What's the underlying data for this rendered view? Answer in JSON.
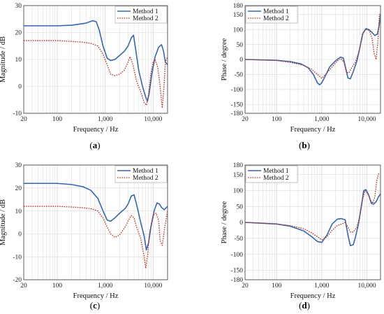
{
  "figure": {
    "colors": {
      "method1": "#3567b0",
      "method2": "#b5311f",
      "grid": "#d9d9d9",
      "frame": "#333333"
    }
  },
  "chart_data": [
    {
      "panel": "a",
      "panel_label": "(a)",
      "type": "line",
      "xscale": "log",
      "xlim": [
        20,
        20000
      ],
      "ylim": [
        -10,
        30
      ],
      "xticks": [
        20,
        100,
        1000,
        10000
      ],
      "xtick_labels": [
        "20",
        "100",
        "1,000",
        "10,000"
      ],
      "yticks": [
        -10,
        0,
        10,
        20,
        30
      ],
      "xlabel": "Frequency / Hz",
      "ylabel": "Magnitude / dB",
      "legend": "top-right",
      "series": [
        {
          "name": "Method 1",
          "style": "solid",
          "x": [
            20,
            100,
            200,
            400,
            550,
            650,
            750,
            900,
            1100,
            1300,
            1600,
            2000,
            2500,
            3000,
            3500,
            3900,
            4300,
            5000,
            6000,
            7000,
            7600,
            8200,
            9500,
            11000,
            13000,
            15000,
            16500,
            18000,
            20000
          ],
          "y": [
            22.5,
            22.5,
            22.7,
            23.5,
            24.4,
            24.0,
            21.0,
            15.0,
            10.5,
            9.6,
            10.0,
            11.5,
            13.0,
            15.0,
            18.0,
            19.0,
            14.0,
            6.0,
            0.0,
            -4.0,
            -5.5,
            -3.0,
            5.0,
            11.0,
            14.5,
            15.5,
            13.0,
            9.0,
            8.0
          ]
        },
        {
          "name": "Method 2",
          "style": "dotted",
          "x": [
            20,
            100,
            300,
            500,
            700,
            900,
            1100,
            1300,
            1600,
            2000,
            2500,
            3000,
            3300,
            3800,
            4500,
            5500,
            6500,
            7300,
            8000,
            9000,
            10000,
            11000,
            12500,
            14000,
            15500,
            17000,
            18000,
            20000
          ],
          "y": [
            17.0,
            17.0,
            16.5,
            16.0,
            15.0,
            12.0,
            8.0,
            4.5,
            4.0,
            4.5,
            6.0,
            9.0,
            11.0,
            8.0,
            2.0,
            -2.0,
            -6.0,
            -7.0,
            -3.0,
            5.0,
            9.0,
            10.0,
            7.0,
            0.0,
            -8.0,
            1.0,
            9.0,
            11.0
          ]
        }
      ]
    },
    {
      "panel": "b",
      "panel_label": "(b)",
      "type": "line",
      "xscale": "log",
      "xlim": [
        20,
        20000
      ],
      "ylim": [
        -180,
        180
      ],
      "xticks": [
        20,
        100,
        1000,
        10000
      ],
      "xtick_labels": [
        "20",
        "100",
        "1,000",
        "10,000"
      ],
      "yticks": [
        -180,
        -150,
        -100,
        -50,
        0,
        50,
        100,
        150,
        180
      ],
      "xlabel": "Frequency / Hz",
      "ylabel": "Phase / degree",
      "legend": "top-left",
      "series": [
        {
          "name": "Method 1",
          "style": "solid",
          "x": [
            20,
            100,
            200,
            350,
            500,
            650,
            800,
            900,
            1000,
            1200,
            1500,
            2000,
            2600,
            3000,
            3400,
            3800,
            4300,
            5000,
            6000,
            7000,
            8000,
            9500,
            11000,
            13000,
            15000,
            17000,
            18500,
            20000
          ],
          "y": [
            0,
            -3,
            -7,
            -15,
            -28,
            -50,
            -78,
            -85,
            -78,
            -55,
            -25,
            -5,
            8,
            5,
            -30,
            -62,
            -65,
            -40,
            -5,
            40,
            85,
            103,
            100,
            90,
            80,
            85,
            110,
            150
          ]
        },
        {
          "name": "Method 2",
          "style": "dotted",
          "x": [
            20,
            100,
            200,
            300,
            400,
            600,
            800,
            1000,
            1300,
            1700,
            2200,
            2700,
            3100,
            3500,
            4000,
            4500,
            5500,
            6500,
            7500,
            8500,
            10000,
            11500,
            13000,
            14500,
            16000,
            17500,
            19000,
            20000
          ],
          "y": [
            0,
            -3,
            -10,
            -15,
            -20,
            -33,
            -50,
            -63,
            -45,
            -25,
            -5,
            3,
            -10,
            -43,
            -45,
            -30,
            -10,
            20,
            60,
            95,
            100,
            95,
            70,
            20,
            0,
            60,
            150,
            152
          ]
        }
      ]
    },
    {
      "panel": "c",
      "panel_label": "(c)",
      "type": "line",
      "xscale": "log",
      "xlim": [
        20,
        20000
      ],
      "ylim": [
        -20,
        30
      ],
      "xticks": [
        20,
        100,
        1000,
        10000
      ],
      "xtick_labels": [
        "20",
        "100",
        "1,000",
        "10,000"
      ],
      "yticks": [
        -20,
        -10,
        0,
        10,
        20,
        30
      ],
      "xlabel": "Frequency / Hz",
      "ylabel": "Magnitude / dB",
      "legend": "top-right",
      "series": [
        {
          "name": "Method 1",
          "style": "solid",
          "x": [
            20,
            100,
            200,
            350,
            500,
            700,
            900,
            1100,
            1300,
            1600,
            2000,
            2600,
            3000,
            3500,
            4000,
            4500,
            5500,
            6500,
            7200,
            8000,
            9000,
            10500,
            12000,
            13500,
            15000,
            17000,
            20000
          ],
          "y": [
            22.0,
            22.0,
            21.5,
            20.5,
            19.0,
            15.5,
            10.0,
            6.0,
            5.5,
            7.0,
            9.0,
            11.0,
            13.0,
            16.5,
            17.0,
            13.0,
            5.0,
            -1.0,
            -7.0,
            -4.0,
            3.0,
            10.0,
            13.5,
            13.0,
            11.5,
            10.5,
            12.0
          ]
        },
        {
          "name": "Method 2",
          "style": "dotted",
          "x": [
            20,
            100,
            300,
            500,
            700,
            900,
            1100,
            1300,
            1600,
            2000,
            2600,
            3000,
            3500,
            4000,
            4500,
            5500,
            6500,
            7000,
            7600,
            8500,
            10000,
            11500,
            13000,
            14000,
            15500,
            17500,
            20000
          ],
          "y": [
            12.0,
            12.0,
            11.5,
            11.0,
            10.0,
            7.0,
            3.0,
            0.0,
            -1.5,
            -0.5,
            3.0,
            5.5,
            8.0,
            7.0,
            3.0,
            -2.0,
            -10.0,
            -15.0,
            -10.0,
            1.0,
            8.0,
            9.0,
            6.0,
            -3.0,
            -5.0,
            3.0,
            10.0
          ]
        }
      ]
    },
    {
      "panel": "d",
      "panel_label": "(d)",
      "type": "line",
      "xscale": "log",
      "xlim": [
        20,
        20000
      ],
      "ylim": [
        -180,
        180
      ],
      "xticks": [
        20,
        100,
        1000,
        10000
      ],
      "xtick_labels": [
        "20",
        "100",
        "1,000",
        "10,000"
      ],
      "yticks": [
        -180,
        -150,
        -100,
        -50,
        0,
        50,
        100,
        150,
        180
      ],
      "xlabel": "Frequency / Hz",
      "ylabel": "Phase / degree",
      "legend": "top-left",
      "series": [
        {
          "name": "Method 1",
          "style": "solid",
          "x": [
            20,
            100,
            200,
            400,
            600,
            800,
            1000,
            1300,
            1700,
            2200,
            2700,
            3300,
            3800,
            4300,
            5000,
            5600,
            6500,
            7500,
            8500,
            9500,
            11000,
            12500,
            14000,
            16000,
            18000,
            20000
          ],
          "y": [
            0,
            -5,
            -12,
            -27,
            -45,
            -60,
            -63,
            -40,
            -5,
            10,
            12,
            8,
            -40,
            -73,
            -70,
            -45,
            -5,
            50,
            100,
            103,
            85,
            60,
            57,
            65,
            80,
            90
          ]
        },
        {
          "name": "Method 2",
          "style": "dotted",
          "x": [
            20,
            100,
            200,
            400,
            600,
            800,
            1000,
            1300,
            1700,
            2200,
            2800,
            3300,
            3800,
            4300,
            5000,
            6000,
            7000,
            8000,
            9000,
            10500,
            12000,
            13500,
            15000,
            16500,
            18000,
            20000
          ],
          "y": [
            0,
            -5,
            -10,
            -20,
            -33,
            -45,
            -55,
            -45,
            -25,
            -10,
            -5,
            0,
            -15,
            -30,
            -30,
            -15,
            20,
            70,
            100,
            90,
            70,
            60,
            80,
            130,
            152,
            152
          ]
        }
      ]
    }
  ]
}
